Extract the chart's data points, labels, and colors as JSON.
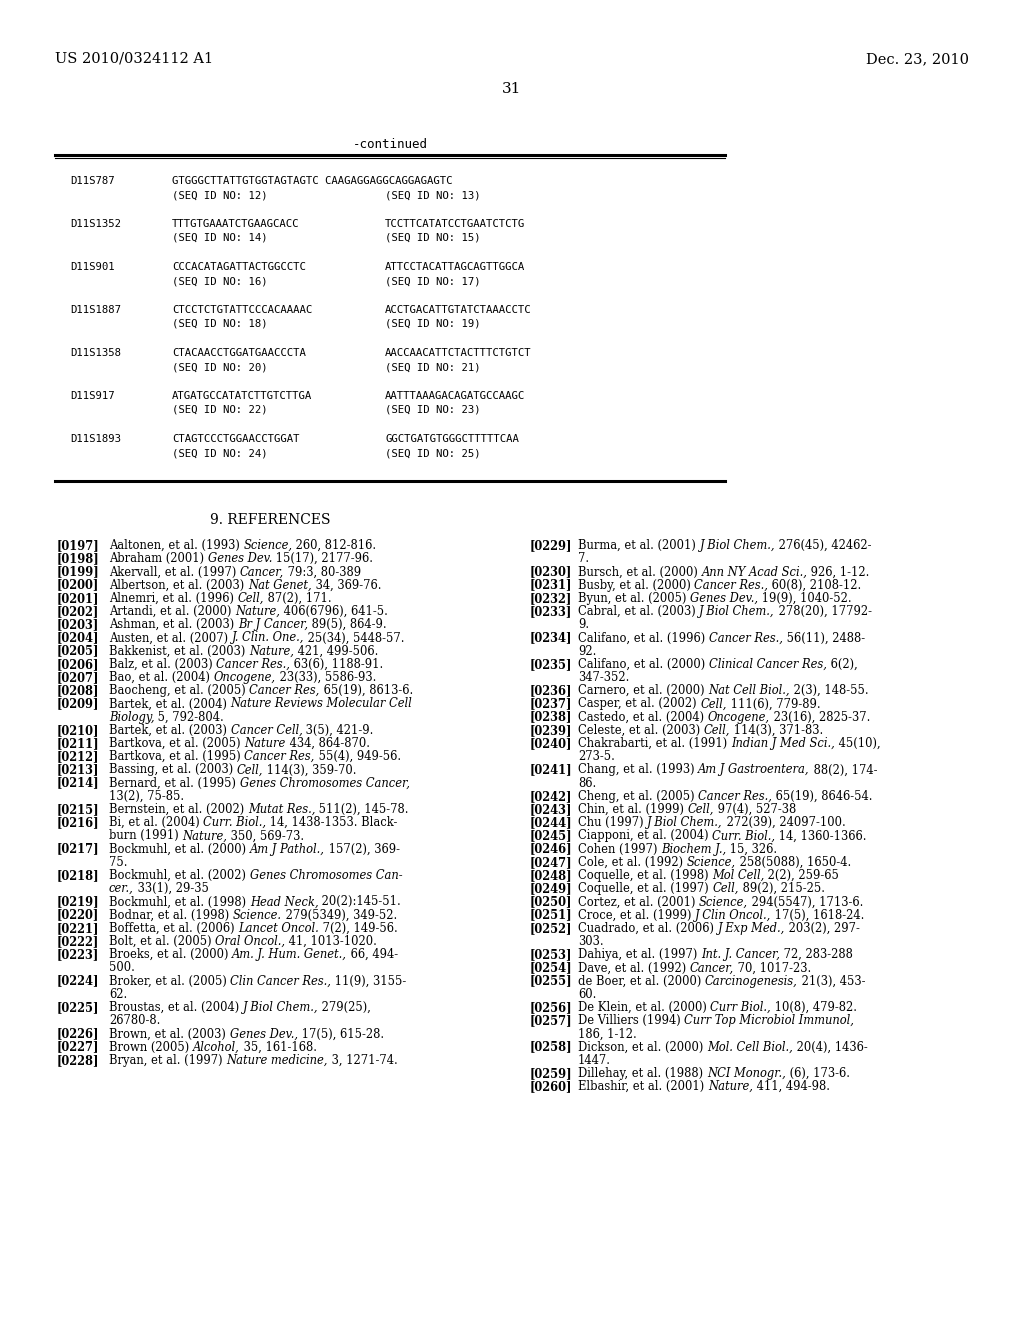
{
  "header_left": "US 2010/0324112 A1",
  "header_right": "Dec. 23, 2010",
  "page_number": "31",
  "continued_label": "-continued",
  "background_color": "#ffffff",
  "table_entries": [
    {
      "label": "D11S787",
      "seq1": "GTGGGCTTATTGTGGTAGTAGTC CAAGAGGAGGCAGGAGAGTC",
      "seq1_id": "(SEQ ID NO: 12)",
      "seq2_id": "(SEQ ID NO: 13)",
      "single_line": true
    },
    {
      "label": "D11S1352",
      "seq1": "TTTGTGAAATCTGAAGCACC",
      "seq2": "TCCTTCATATCCTGAATCTCTG",
      "seq1_id": "(SEQ ID NO: 14)",
      "seq2_id": "(SEQ ID NO: 15)",
      "single_line": false
    },
    {
      "label": "D11S901",
      "seq1": "CCCACATAGATTACTGGCCTC",
      "seq2": "ATTCCTACATTAGCAGTTGGCA",
      "seq1_id": "(SEQ ID NO: 16)",
      "seq2_id": "(SEQ ID NO: 17)",
      "single_line": false
    },
    {
      "label": "D11S1887",
      "seq1": "CTCCTCTGTATTCCCACAAAAC",
      "seq2": "ACCTGACATTGTATCTAAACCTC",
      "seq1_id": "(SEQ ID NO: 18)",
      "seq2_id": "(SEQ ID NO: 19)",
      "single_line": false
    },
    {
      "label": "D11S1358",
      "seq1": "CTACAACCTGGATGAACCCTA",
      "seq2": "AACCAACATTCTACTTTCTGTCT",
      "seq1_id": "(SEQ ID NO: 20)",
      "seq2_id": "(SEQ ID NO: 21)",
      "single_line": false
    },
    {
      "label": "D11S917",
      "seq1": "ATGATGCCATATCTTGTCTTGA",
      "seq2": "AATTTAAAGACAGATGCCAAGC",
      "seq1_id": "(SEQ ID NO: 22)",
      "seq2_id": "(SEQ ID NO: 23)",
      "single_line": false
    },
    {
      "label": "D11S1893",
      "seq1": "CTAGTCCCTGGAACCTGGAT",
      "seq2": "GGCTGATGTGGGCTTTTTCAA",
      "seq1_id": "(SEQ ID NO: 24)",
      "seq2_id": "(SEQ ID NO: 25)",
      "single_line": false
    }
  ],
  "section_title": "9. REFERENCES",
  "references_left": [
    {
      "num": "[0197]",
      "line1": "Aaltonen, et al. (1993) Science, 260, 812-816.",
      "italic_word": "Science,",
      "wrap": false
    },
    {
      "num": "[0198]",
      "line1": "Abraham (2001) Genes Dev. 15(17), 2177-96.",
      "italic_word": "Genes Dev.",
      "wrap": false
    },
    {
      "num": "[0199]",
      "line1": "Akervall, et al. (1997) Cancer, 79:3, 80-389",
      "italic_word": "Cancer,",
      "wrap": false
    },
    {
      "num": "[0200]",
      "line1": "Albertson, et al. (2003) Nat Genet, 34, 369-76.",
      "italic_word": "Nat Genet,",
      "wrap": false
    },
    {
      "num": "[0201]",
      "line1": "Alnemri, et al. (1996) Cell, 87(2), 171.",
      "italic_word": "Cell,",
      "wrap": false
    },
    {
      "num": "[0202]",
      "line1": "Artandi, et al. (2000) Nature, 406(6796), 641-5.",
      "italic_word": "Nature,",
      "wrap": false
    },
    {
      "num": "[0203]",
      "line1": "Ashman, et al. (2003) Br J Cancer, 89(5), 864-9.",
      "italic_word": "Br J Cancer,",
      "wrap": false
    },
    {
      "num": "[0204]",
      "line1": "Austen, et al. (2007) J. Clin. One., 25(34), 5448-57.",
      "italic_word": "J. Clin. One.,",
      "wrap": false
    },
    {
      "num": "[0205]",
      "line1": "Bakkenist, et al. (2003) Nature, 421, 499-506.",
      "italic_word": "Nature,",
      "wrap": false
    },
    {
      "num": "[0206]",
      "line1": "Balz, et al. (2003) Cancer Res., 63(6), 1188-91.",
      "italic_word": "Cancer Res.,",
      "wrap": false
    },
    {
      "num": "[0207]",
      "line1": "Bao, et al. (2004) Oncogene, 23(33), 5586-93.",
      "italic_word": "Oncogene,",
      "wrap": false
    },
    {
      "num": "[0208]",
      "line1": "Baocheng, et al. (2005) Cancer Res, 65(19), 8613-6.",
      "italic_word": "Cancer Res,",
      "wrap": false
    },
    {
      "num": "[0209]",
      "line1": "Bartek, et al. (2004) Nature Reviews Molecular Cell",
      "line2": "Biology, 5, 792-804.",
      "italic_word": "Nature Reviews Molecular Cell",
      "italic_word2": "Biology,",
      "wrap": true
    },
    {
      "num": "[0210]",
      "line1": "Bartek, et al. (2003) Cancer Cell, 3(5), 421-9.",
      "italic_word": "Cancer Cell,",
      "wrap": false
    },
    {
      "num": "[0211]",
      "line1": "Bartkova, et al. (2005) Nature 434, 864-870.",
      "italic_word": "Nature",
      "wrap": false
    },
    {
      "num": "[0212]",
      "line1": "Bartkova, et al. (1995) Cancer Res, 55(4), 949-56.",
      "italic_word": "Cancer Res,",
      "wrap": false
    },
    {
      "num": "[0213]",
      "line1": "Bassing, et al. (2003) Cell, 114(3), 359-70.",
      "italic_word": "Cell,",
      "wrap": false
    },
    {
      "num": "[0214]",
      "line1": "Bernard, et al. (1995) Genes Chromosomes Cancer,",
      "line2": "13(2), 75-85.",
      "italic_word": "Genes Chromosomes Cancer,",
      "wrap": true
    },
    {
      "num": "[0215]",
      "line1": "Bernstein, et al. (2002) Mutat Res., 511(2), 145-78.",
      "italic_word": "Mutat Res.,",
      "wrap": false
    },
    {
      "num": "[0216]",
      "line1": "Bi, et al. (2004) Curr. Biol., 14, 1438-1353. Black-",
      "line2": "burn (1991) Nature, 350, 569-73.",
      "italic_word": "Curr. Biol.,",
      "italic_word2": "Nature,",
      "wrap": true
    },
    {
      "num": "[0217]",
      "line1": "Bockmuhl, et al. (2000) Am J Pathol., 157(2), 369-",
      "line2": "75.",
      "italic_word": "Am J Pathol.,",
      "wrap": true
    },
    {
      "num": "[0218]",
      "line1": "Bockmuhl, et al. (2002) Genes Chromosomes Can-",
      "line2": "cer., 33(1), 29-35",
      "italic_word": "Genes Chromosomes Can-",
      "italic_word2": "cer.,",
      "wrap": true
    },
    {
      "num": "[0219]",
      "line1": "Bockmuhl, et al. (1998) Head Neck, 20(2):145-51.",
      "italic_word": "Head Neck,",
      "wrap": false
    },
    {
      "num": "[0220]",
      "line1": "Bodnar, et al. (1998) Science. 279(5349), 349-52.",
      "italic_word": "Science.",
      "wrap": false
    },
    {
      "num": "[0221]",
      "line1": "Boffetta, et al. (2006) Lancet Oncol. 7(2), 149-56.",
      "italic_word": "Lancet Oncol.",
      "wrap": false
    },
    {
      "num": "[0222]",
      "line1": "Bolt, et al. (2005) Oral Oncol., 41, 1013-1020.",
      "italic_word": "Oral Oncol.,",
      "wrap": false
    },
    {
      "num": "[0223]",
      "line1": "Broeks, et al. (2000) Am. J. Hum. Genet., 66, 494-",
      "line2": "500.",
      "italic_word": "Am. J. Hum. Genet.,",
      "wrap": true
    },
    {
      "num": "[0224]",
      "line1": "Broker, et al. (2005) Clin Cancer Res., 11(9), 3155-",
      "line2": "62.",
      "italic_word": "Clin Cancer Res.,",
      "wrap": true
    },
    {
      "num": "[0225]",
      "line1": "Broustas, et al. (2004) J Biol Chem., 279(25),",
      "line2": "26780-8.",
      "italic_word": "J Biol Chem.,",
      "wrap": true
    },
    {
      "num": "[0226]",
      "line1": "Brown, et al. (2003) Genes Dev., 17(5), 615-28.",
      "italic_word": "Genes Dev.,",
      "wrap": false
    },
    {
      "num": "[0227]",
      "line1": "Brown (2005) Alcohol, 35, 161-168.",
      "italic_word": "Alcohol,",
      "wrap": false
    },
    {
      "num": "[0228]",
      "line1": "Bryan, et al. (1997) Nature medicine, 3, 1271-74.",
      "italic_word": "Nature medicine,",
      "wrap": false
    }
  ],
  "references_right": [
    {
      "num": "[0229]",
      "line1": "Burma, et al. (2001) J Biol Chem., 276(45), 42462-",
      "line2": "7.",
      "italic_word": "J Biol Chem.,",
      "wrap": true
    },
    {
      "num": "[0230]",
      "line1": "Bursch, et al. (2000) Ann NY Acad Sci., 926, 1-12.",
      "italic_word": "Ann NY Acad Sci.,",
      "wrap": false
    },
    {
      "num": "[0231]",
      "line1": "Busby, et al. (2000) Cancer Res., 60(8), 2108-12.",
      "italic_word": "Cancer Res.,",
      "wrap": false
    },
    {
      "num": "[0232]",
      "line1": "Byun, et al. (2005) Genes Dev., 19(9), 1040-52.",
      "italic_word": "Genes Dev.,",
      "wrap": false
    },
    {
      "num": "[0233]",
      "line1": "Cabral, et al. (2003) J Biol Chem., 278(20), 17792-",
      "line2": "9.",
      "italic_word": "J Biol Chem.,",
      "wrap": true
    },
    {
      "num": "[0234]",
      "line1": "Califano, et al. (1996) Cancer Res., 56(11), 2488-",
      "line2": "92.",
      "italic_word": "Cancer Res.,",
      "wrap": true
    },
    {
      "num": "[0235]",
      "line1": "Califano, et al. (2000) Clinical Cancer Res, 6(2),",
      "line2": "347-352.",
      "italic_word": "Clinical Cancer Res,",
      "wrap": true
    },
    {
      "num": "[0236]",
      "line1": "Carnero, et al. (2000) Nat Cell Biol., 2(3), 148-55.",
      "italic_word": "Nat Cell Biol.,",
      "wrap": false
    },
    {
      "num": "[0237]",
      "line1": "Casper, et al. (2002) Cell, 111(6), 779-89.",
      "italic_word": "Cell,",
      "wrap": false
    },
    {
      "num": "[0238]",
      "line1": "Castedo, et al. (2004) Oncogene, 23(16), 2825-37.",
      "italic_word": "Oncogene,",
      "wrap": false
    },
    {
      "num": "[0239]",
      "line1": "Celeste, et al. (2003) Cell, 114(3), 371-83.",
      "italic_word": "Cell,",
      "wrap": false
    },
    {
      "num": "[0240]",
      "line1": "Chakrabarti, et al. (1991) Indian J Med Sci., 45(10),",
      "line2": "273-5.",
      "italic_word": "Indian J Med Sci.,",
      "wrap": true
    },
    {
      "num": "[0241]",
      "line1": "Chang, et al. (1993) Am J Gastroentera, 88(2), 174-",
      "line2": "86.",
      "italic_word": "Am J Gastroentera,",
      "wrap": true
    },
    {
      "num": "[0242]",
      "line1": "Cheng, et al. (2005) Cancer Res., 65(19), 8646-54.",
      "italic_word": "Cancer Res.,",
      "wrap": false
    },
    {
      "num": "[0243]",
      "line1": "Chin, et al. (1999) Cell, 97(4), 527-38",
      "italic_word": "Cell,",
      "wrap": false
    },
    {
      "num": "[0244]",
      "line1": "Chu (1997) J Biol Chem., 272(39), 24097-100.",
      "italic_word": "J Biol Chem.,",
      "wrap": false
    },
    {
      "num": "[0245]",
      "line1": "Ciapponi, et al. (2004) Curr. Biol., 14, 1360-1366.",
      "italic_word": "Curr. Biol.,",
      "wrap": false
    },
    {
      "num": "[0246]",
      "line1": "Cohen (1997) Biochem J., 15, 326.",
      "italic_word": "Biochem J.,",
      "wrap": false
    },
    {
      "num": "[0247]",
      "line1": "Cole, et al. (1992) Science, 258(5088), 1650-4.",
      "italic_word": "Science,",
      "wrap": false
    },
    {
      "num": "[0248]",
      "line1": "Coquelle, et al. (1998) Mol Cell, 2(2), 259-65",
      "italic_word": "Mol Cell,",
      "wrap": false
    },
    {
      "num": "[0249]",
      "line1": "Coquelle, et al. (1997) Cell, 89(2), 215-25.",
      "italic_word": "Cell,",
      "wrap": false
    },
    {
      "num": "[0250]",
      "line1": "Cortez, et al. (2001) Science, 294(5547), 1713-6.",
      "italic_word": "Science,",
      "wrap": false
    },
    {
      "num": "[0251]",
      "line1": "Croce, et al. (1999) J Clin Oncol., 17(5), 1618-24.",
      "italic_word": "J Clin Oncol.,",
      "wrap": false
    },
    {
      "num": "[0252]",
      "line1": "Cuadrado, et al. (2006) J Exp Med., 203(2), 297-",
      "line2": "303.",
      "italic_word": "J Exp Med.,",
      "wrap": true
    },
    {
      "num": "[0253]",
      "line1": "Dahiya, et al. (1997) Int. J. Cancer, 72, 283-288",
      "italic_word": "Int. J. Cancer,",
      "wrap": false
    },
    {
      "num": "[0254]",
      "line1": "Dave, et al. (1992) Cancer, 70, 1017-23.",
      "italic_word": "Cancer,",
      "wrap": false
    },
    {
      "num": "[0255]",
      "line1": "de Boer, et al. (2000) Carcinogenesis, 21(3), 453-",
      "line2": "60.",
      "italic_word": "Carcinogenesis,",
      "wrap": true
    },
    {
      "num": "[0256]",
      "line1": "De Klein, et al. (2000) Curr Biol., 10(8), 479-82.",
      "italic_word": "Curr Biol.,",
      "wrap": false
    },
    {
      "num": "[0257]",
      "line1": "De Villiers (1994) Curr Top Microbiol Immunol,",
      "line2": "186, 1-12.",
      "italic_word": "Curr Top Microbiol Immunol,",
      "wrap": true
    },
    {
      "num": "[0258]",
      "line1": "Dickson, et al. (2000) Mol. Cell Biol., 20(4), 1436-",
      "line2": "1447.",
      "italic_word": "Mol. Cell Biol.,",
      "wrap": true
    },
    {
      "num": "[0259]",
      "line1": "Dillehay, et al. (1988) NCI Monogr., (6), 173-6.",
      "italic_word": "NCI Monogr.,",
      "wrap": false
    },
    {
      "num": "[0260]",
      "line1": "Elbashir, et al. (2001) Nature, 411, 494-98.",
      "italic_word": "Nature,",
      "wrap": false
    }
  ]
}
